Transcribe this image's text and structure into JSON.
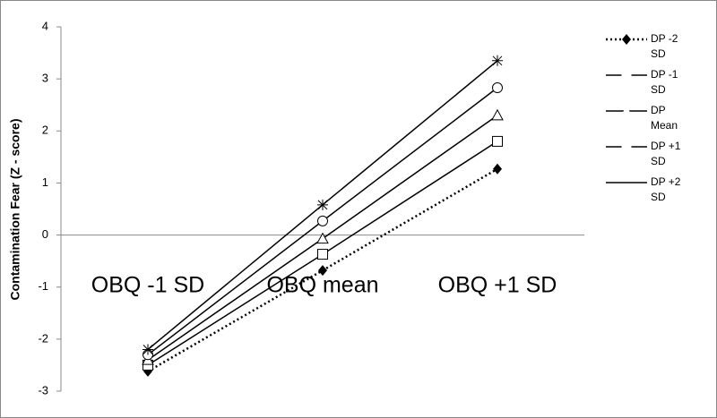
{
  "chart_data": {
    "type": "line",
    "y_label": "Contamination Fear (Z - score)",
    "categories": [
      "OBQ -1 SD",
      "OBQ mean",
      "OBQ +1 SD"
    ],
    "ylim": [
      -3,
      4
    ],
    "yticks": [
      -3,
      -2,
      -1,
      0,
      1,
      2,
      3,
      4
    ],
    "series": [
      {
        "name": "DP -2 SD",
        "color": "#000000",
        "marker": "diamond",
        "line_style": "dotted",
        "values": [
          -2.62,
          -0.68,
          1.27
        ]
      },
      {
        "name": "DP -1 SD",
        "color": "#000000",
        "marker": "square",
        "line_style": "solid",
        "values": [
          -2.5,
          -0.37,
          1.8
        ]
      },
      {
        "name": "DP Mean",
        "color": "#000000",
        "marker": "triangle",
        "line_style": "solid",
        "values": [
          -2.4,
          -0.07,
          2.3
        ]
      },
      {
        "name": "DP +1 SD",
        "color": "#000000",
        "marker": "circle",
        "line_style": "solid",
        "values": [
          -2.3,
          0.27,
          2.83
        ]
      },
      {
        "name": "DP +2 SD",
        "color": "#000000",
        "marker": "star",
        "line_style": "solid",
        "values": [
          -2.2,
          0.58,
          3.35
        ]
      }
    ]
  }
}
